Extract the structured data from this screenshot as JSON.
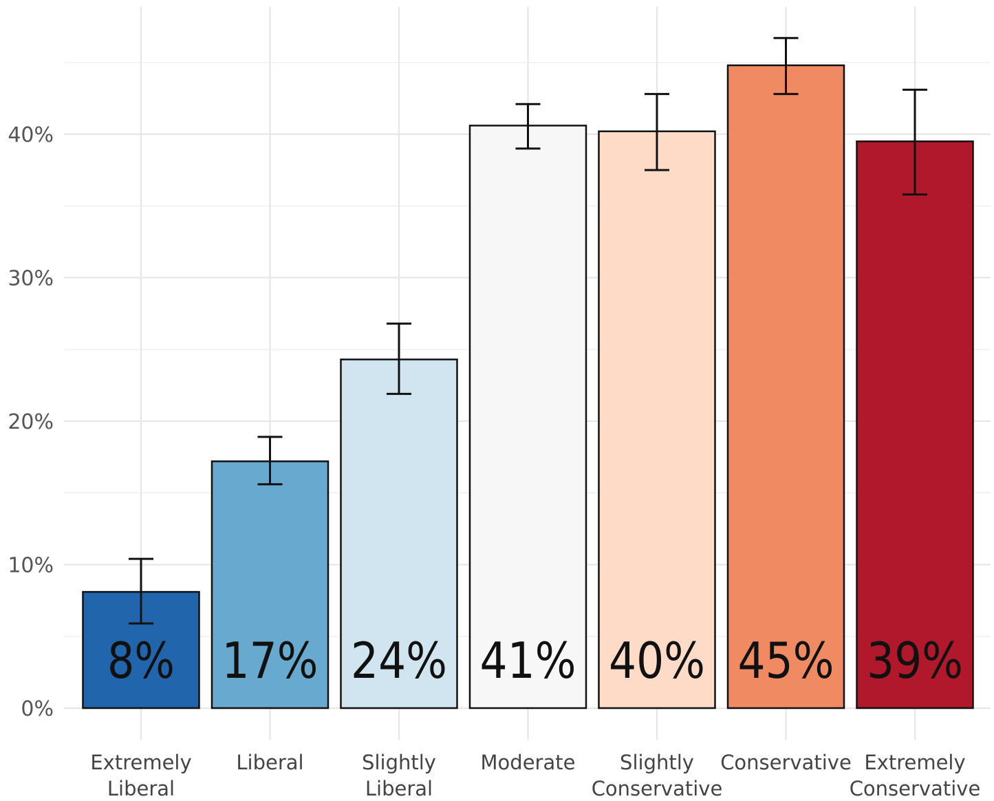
{
  "chart_data": {
    "type": "bar",
    "title": "",
    "xlabel": "",
    "ylabel": "",
    "categories": [
      [
        "Extremely",
        "Liberal"
      ],
      [
        "Liberal"
      ],
      [
        "Slightly",
        "Liberal"
      ],
      [
        "Moderate"
      ],
      [
        "Slightly",
        "Conservative"
      ],
      [
        "Conservative"
      ],
      [
        "Extremely",
        "Conservative"
      ]
    ],
    "values": [
      8.1,
      17.2,
      24.3,
      40.6,
      40.2,
      44.8,
      39.5
    ],
    "value_labels": [
      "8%",
      "17%",
      "24%",
      "41%",
      "40%",
      "45%",
      "39%"
    ],
    "error_low": [
      5.9,
      15.6,
      21.9,
      39.0,
      37.5,
      42.8,
      35.8
    ],
    "error_high": [
      10.4,
      18.9,
      26.8,
      42.1,
      42.8,
      46.7,
      43.1
    ],
    "colors": [
      "#2166ac",
      "#67a9cf",
      "#d1e5f0",
      "#f7f7f7",
      "#fddbc7",
      "#ef8a62",
      "#b2182b"
    ],
    "ylim": [
      -2,
      49
    ],
    "yticks": [
      0,
      10,
      20,
      30,
      40
    ],
    "ytick_labels": [
      "0%",
      "10%",
      "20%",
      "30%",
      "40%"
    ],
    "grid": true,
    "legend": "none"
  }
}
